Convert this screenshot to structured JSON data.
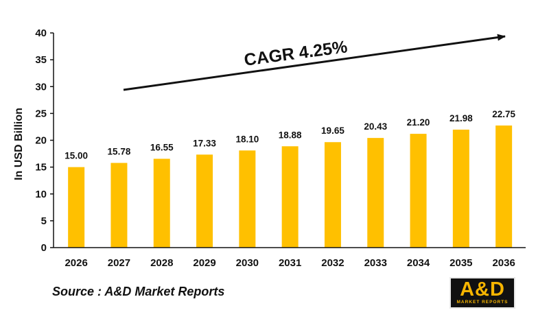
{
  "chart_data": {
    "type": "bar",
    "categories": [
      "2026",
      "2027",
      "2028",
      "2029",
      "2030",
      "2031",
      "2032",
      "2033",
      "2034",
      "2035",
      "2036"
    ],
    "values": [
      15.0,
      15.78,
      16.55,
      17.33,
      18.1,
      18.88,
      19.65,
      20.43,
      21.2,
      21.98,
      22.75
    ],
    "value_labels": [
      "15.00",
      "15.78",
      "16.55",
      "17.33",
      "18.10",
      "18.88",
      "19.65",
      "20.43",
      "21.20",
      "21.98",
      "22.75"
    ],
    "ylabel": "In USD Billion",
    "ylim": [
      0,
      40
    ],
    "yticks": [
      "0",
      "5",
      "10",
      "15",
      "20",
      "25",
      "30",
      "35",
      "40"
    ],
    "grid": false,
    "bar_color": "#ffc000",
    "annotation": "CAGR 4.25%"
  },
  "source": "Source : A&D Market Reports",
  "logo": {
    "main": "A&D",
    "sub": "MARKET REPORTS",
    "accent": "#f7b500"
  }
}
